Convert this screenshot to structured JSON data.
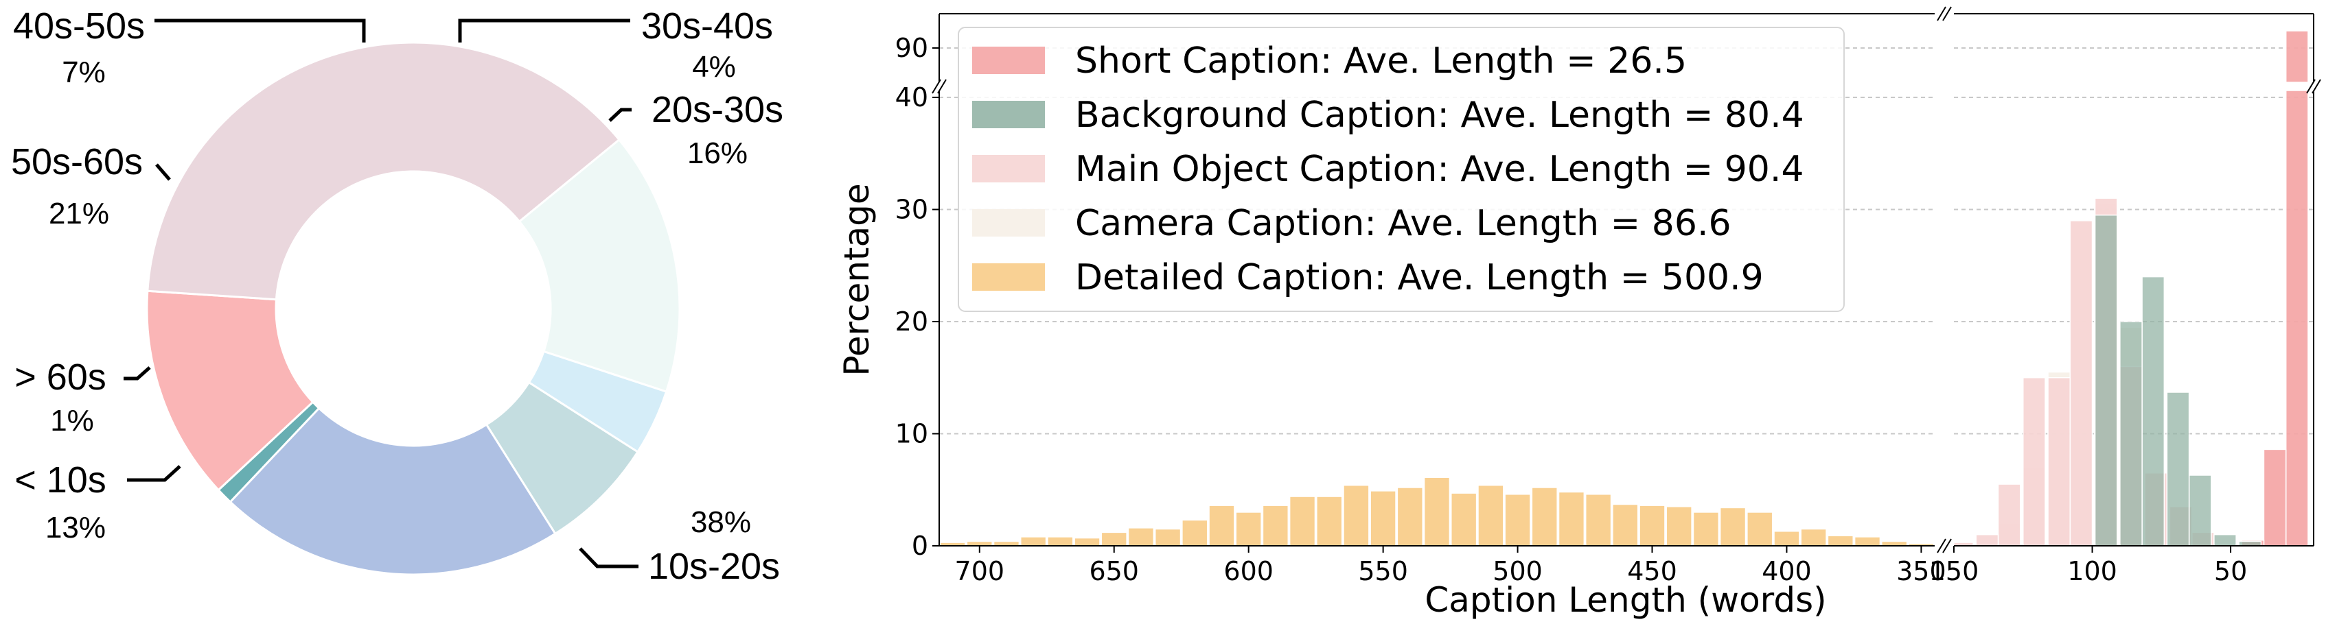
{
  "chart_data": [
    {
      "type": "pie",
      "donut": true,
      "slices": [
        {
          "label": "< 10s",
          "value": 13,
          "pct_label": "13%",
          "color": "#fab5b6"
        },
        {
          "label": "10s-20s",
          "value": 38,
          "pct_label": "38%",
          "color": "#ead7dd"
        },
        {
          "label": "20s-30s",
          "value": 16,
          "pct_label": "16%",
          "color": "#eef8f6"
        },
        {
          "label": "30s-40s",
          "value": 4,
          "pct_label": "4%",
          "color": "#d5edf8"
        },
        {
          "label": "40s-50s",
          "value": 7,
          "pct_label": "7%",
          "color": "#c4dde0"
        },
        {
          "label": "50s-60s",
          "value": 21,
          "pct_label": "21%",
          "color": "#aec0e3"
        },
        {
          "label": "> 60s",
          "value": 1,
          "pct_label": "1%",
          "color": "#68aeb2"
        }
      ]
    },
    {
      "type": "bar",
      "ylabel": "Percentage",
      "xlabel": "Caption Length (words)",
      "x_axis_reversed": true,
      "broken_x_axis": [
        [
          345,
          715
        ],
        [
          20,
          150
        ]
      ],
      "broken_y_axis": [
        [
          0,
          40
        ],
        [
          88,
          92
        ]
      ],
      "yticks": [
        0,
        10,
        20,
        30,
        40,
        90
      ],
      "xticks_left": [
        700,
        650,
        600,
        550,
        500,
        450,
        400,
        350
      ],
      "xticks_right": [
        150,
        100,
        50
      ],
      "grid": "horizontal dashed",
      "legend_position": "top-left",
      "series": [
        {
          "name": "Short Caption: Ave. Length = 26.5",
          "color": "#f4a5a5",
          "x": [
            26,
            34,
            42
          ],
          "values": [
            91,
            8.6,
            0.5
          ]
        },
        {
          "name": "Background Caption: Ave. Length = 80.4",
          "color": "#94b4a6",
          "x": [
            43,
            52,
            61,
            69,
            78,
            86,
            95
          ],
          "values": [
            0.4,
            1,
            6.3,
            13.7,
            24,
            20,
            29.5
          ]
        },
        {
          "name": "Main Object Caption: Ave. Length = 90.4",
          "color": "#f6d5d4",
          "x": [
            60,
            68,
            77,
            86,
            95,
            104,
            112,
            121,
            130,
            138,
            147
          ],
          "values": [
            1.2,
            3.5,
            6.5,
            16,
            31,
            29,
            15,
            15,
            5.5,
            1,
            0.3
          ]
        },
        {
          "name": "Camera Caption: Ave. Length = 86.6",
          "color": "#f6f0e7",
          "x": [
            68,
            77,
            86,
            95,
            104,
            112,
            121,
            130
          ],
          "values": [
            2,
            6,
            19.5,
            30.5,
            29,
            15.5,
            7,
            2
          ]
        },
        {
          "name": "Detailed Caption: Ave. Length = 500.9",
          "color": "#f8cc88",
          "x": [
            710,
            700,
            690,
            680,
            670,
            660,
            650,
            640,
            630,
            620,
            610,
            600,
            590,
            580,
            570,
            560,
            550,
            540,
            530,
            520,
            510,
            500,
            490,
            480,
            470,
            460,
            450,
            440,
            430,
            420,
            410,
            400,
            390,
            380,
            370,
            360,
            350
          ],
          "values": [
            0.3,
            0.4,
            0.4,
            0.8,
            0.8,
            0.7,
            1.2,
            1.6,
            1.5,
            2.3,
            3.6,
            3.0,
            3.6,
            4.4,
            4.4,
            5.4,
            4.9,
            5.2,
            6.1,
            4.7,
            5.4,
            4.6,
            5.2,
            4.8,
            4.6,
            3.7,
            3.6,
            3.5,
            3.0,
            3.4,
            3.0,
            1.3,
            1.5,
            0.9,
            0.8,
            0.4,
            0.2
          ]
        }
      ]
    }
  ]
}
